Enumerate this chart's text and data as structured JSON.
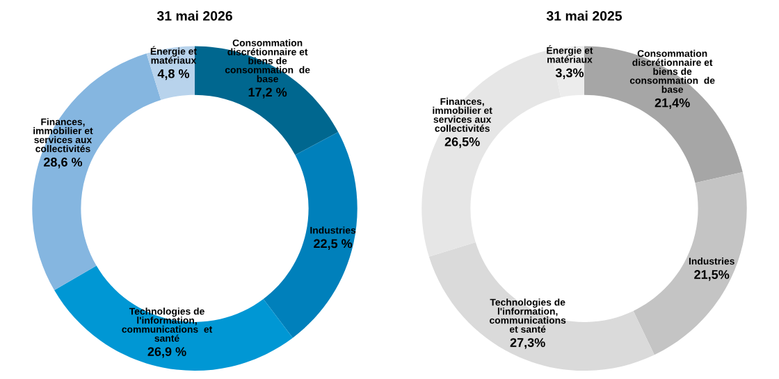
{
  "chart_data": [
    {
      "type": "donut",
      "title": "31 mai 2026",
      "categories": [
        "Consommation\ndiscrétionnaire et\nbiens de\nconsommation  de\nbase",
        "Industries",
        "Technologies de\nl'information,\ncommunications  et\nsanté",
        "Finances,\nimmobilier et\nservices aux\ncollectivités",
        "Énergie et\nmatériaux"
      ],
      "values": [
        17.2,
        22.5,
        26.9,
        28.6,
        4.8
      ],
      "value_labels": [
        "17,2 %",
        "22,5 %",
        "26,9 %",
        "28,6 %",
        "4,8 %"
      ],
      "colors": [
        "#00678f",
        "#0080bb",
        "#0097d4",
        "#85b6e0",
        "#b8d3ec"
      ]
    },
    {
      "type": "donut",
      "title": "31 mai 2025",
      "categories": [
        "Consommation\ndiscrétionnaire et\nbiens de\nconsommation  de\nbase",
        "Industries",
        "Technologies de\nl'information,\ncommunications\net santé",
        "Finances,\nimmobilier et\nservices aux\ncollectivités",
        "Énergie et\nmatériaux"
      ],
      "values": [
        21.4,
        21.5,
        27.3,
        26.5,
        3.3
      ],
      "value_labels": [
        "21,4%",
        "21,5%",
        "27,3%",
        "26,5%",
        "3,3%"
      ],
      "colors": [
        "#a6a6a6",
        "#c4c4c4",
        "#dadada",
        "#e6e6e6",
        "#ececec"
      ]
    }
  ]
}
